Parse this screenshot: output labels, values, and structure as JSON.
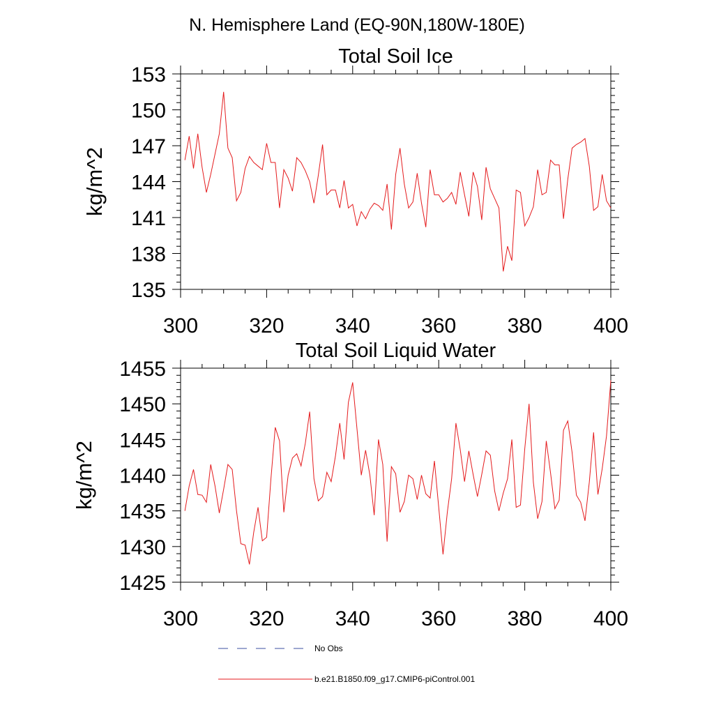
{
  "page_title": "N. Hemisphere Land (EQ-90N,180W-180E)",
  "legend": {
    "obs_label": "No Obs",
    "model_label": "b.e21.B1850.f09_g17.CMIP6-piControl.001",
    "colors": {
      "obs": "#3b4fa0",
      "model": "#e41a1c"
    }
  },
  "chart_data": [
    {
      "type": "line",
      "title": "Total Soil Ice",
      "xlabel": "",
      "ylabel": "kg/m^2",
      "xlim": [
        300,
        400
      ],
      "ylim": [
        135,
        153
      ],
      "xticks": [
        300,
        320,
        340,
        360,
        380,
        400
      ],
      "yticks": [
        135,
        138,
        141,
        144,
        147,
        150,
        153
      ],
      "grid": false,
      "x_start": 301,
      "series": [
        {
          "name": "b.e21.B1850.f09_g17.CMIP6-piControl.001",
          "color": "#e41a1c",
          "values": [
            145.8,
            147.8,
            145.1,
            148.0,
            145.2,
            143.1,
            144.6,
            146.3,
            148.0,
            151.5,
            146.8,
            146.0,
            142.4,
            143.1,
            145.1,
            146.1,
            145.6,
            145.3,
            145.0,
            147.2,
            145.6,
            145.6,
            141.8,
            145.0,
            144.3,
            143.2,
            146.0,
            145.6,
            144.9,
            144.0,
            142.2,
            144.5,
            147.1,
            142.9,
            143.3,
            143.3,
            141.8,
            144.1,
            141.8,
            142.1,
            140.3,
            141.5,
            140.9,
            141.7,
            142.2,
            142.0,
            141.6,
            143.8,
            140.0,
            144.6,
            146.8,
            143.8,
            141.8,
            142.3,
            144.7,
            142.2,
            140.2,
            145.0,
            142.9,
            142.9,
            142.3,
            142.6,
            143.1,
            142.1,
            144.8,
            142.9,
            141.1,
            144.8,
            143.6,
            140.8,
            145.2,
            143.4,
            142.6,
            141.8,
            136.5,
            138.6,
            137.4,
            143.3,
            143.1,
            140.3,
            141.0,
            141.9,
            145.0,
            142.9,
            143.1,
            145.8,
            145.4,
            145.4,
            140.9,
            144.2,
            146.8,
            147.1,
            147.3,
            147.6,
            145.3,
            141.6,
            141.9,
            144.6,
            142.4,
            141.8
          ]
        }
      ]
    },
    {
      "type": "line",
      "title": "Total Soil Liquid Water",
      "xlabel": "",
      "ylabel": "kg/m^2",
      "xlim": [
        300,
        400
      ],
      "ylim": [
        1425,
        1455
      ],
      "xticks": [
        300,
        320,
        340,
        360,
        380,
        400
      ],
      "yticks": [
        1425,
        1430,
        1435,
        1440,
        1445,
        1450,
        1455
      ],
      "grid": false,
      "x_start": 301,
      "series": [
        {
          "name": "b.e21.B1850.f09_g17.CMIP6-piControl.001",
          "color": "#e41a1c",
          "values": [
            1435.0,
            1438.5,
            1440.8,
            1437.3,
            1437.2,
            1436.2,
            1441.5,
            1438.5,
            1434.7,
            1438.0,
            1441.5,
            1440.8,
            1435.0,
            1430.4,
            1430.2,
            1427.5,
            1432.0,
            1435.5,
            1430.8,
            1431.3,
            1439.5,
            1446.7,
            1444.8,
            1434.8,
            1440.0,
            1442.4,
            1443.0,
            1441.3,
            1444.5,
            1448.9,
            1439.5,
            1436.4,
            1437.0,
            1440.4,
            1439.1,
            1442.7,
            1447.3,
            1442.2,
            1450.2,
            1453.0,
            1446.5,
            1440.0,
            1443.5,
            1440.0,
            1434.4,
            1445.0,
            1441.5,
            1430.7,
            1441.2,
            1440.2,
            1434.8,
            1436.3,
            1440.0,
            1439.5,
            1436.6,
            1440.0,
            1437.4,
            1436.8,
            1442.0,
            1435.5,
            1428.9,
            1434.8,
            1439.5,
            1447.3,
            1443.6,
            1439.1,
            1443.4,
            1440.1,
            1437.0,
            1440.1,
            1443.4,
            1442.8,
            1437.8,
            1435.0,
            1437.5,
            1439.5,
            1445.0,
            1435.5,
            1435.8,
            1443.7,
            1450.0,
            1439.0,
            1433.9,
            1436.3,
            1444.8,
            1440.3,
            1435.3,
            1436.5,
            1446.3,
            1447.6,
            1443.2,
            1437.2,
            1436.2,
            1433.6,
            1439.0,
            1446.0,
            1437.3,
            1440.9,
            1445.5,
            1453.3
          ]
        }
      ]
    }
  ]
}
